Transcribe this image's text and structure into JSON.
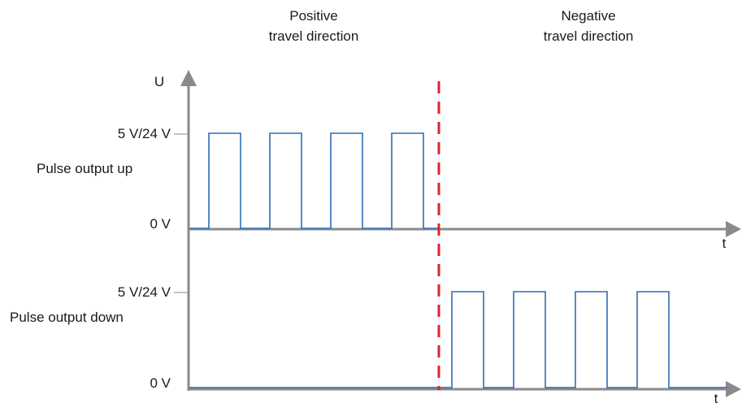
{
  "headers": {
    "positive_line1": "Positive",
    "positive_line2": "travel direction",
    "negative_line1": "Negative",
    "negative_line2": "travel direction"
  },
  "axis": {
    "voltage_label": "U",
    "time_label_top": "t",
    "time_label_bottom": "t"
  },
  "channels": [
    {
      "name": "Pulse output up",
      "high_level_label": "5 V/24 V",
      "low_level_label": "0 V",
      "pulse_count": 4,
      "active_direction": "positive"
    },
    {
      "name": "Pulse output down",
      "high_level_label": "5 V/24 V",
      "low_level_label": "0 V",
      "pulse_count": 4,
      "active_direction": "negative"
    }
  ],
  "colors": {
    "axis": "#8a8a8a",
    "signal": "#2f6db5",
    "boundary": "#d9262c",
    "text": "#1a1a1a"
  }
}
